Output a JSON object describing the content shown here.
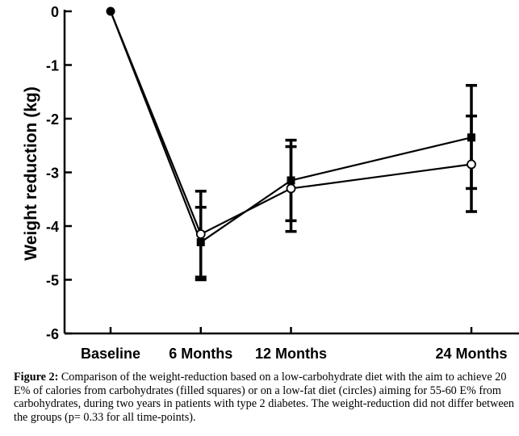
{
  "chart_data": {
    "type": "line",
    "title": "",
    "xlabel": "",
    "ylabel": "Weight reduction (kg)",
    "categories": [
      "Baseline",
      "6 Months",
      "12 Months",
      "24 Months"
    ],
    "x_months": [
      0,
      6,
      12,
      24
    ],
    "ylim": [
      -6,
      0
    ],
    "yticks": [
      0,
      -1,
      -2,
      -3,
      -4,
      -5,
      -6
    ],
    "grid": false,
    "legend": "none",
    "series": [
      {
        "name": "Low-carbohydrate diet (filled squares)",
        "marker": "filled-square",
        "values": [
          0,
          -4.3,
          -3.15,
          -2.35
        ],
        "error_upper": [
          0,
          -3.35,
          -2.4,
          -1.38
        ],
        "error_lower": [
          0,
          -5.0,
          -4.1,
          -3.73
        ]
      },
      {
        "name": "Low-fat diet (circles)",
        "marker": "open-circle",
        "values": [
          0,
          -4.15,
          -3.3,
          -2.85
        ],
        "error_upper": [
          0,
          -3.65,
          -2.52,
          -1.95
        ],
        "error_lower": [
          0,
          -4.95,
          -3.9,
          -3.3
        ]
      }
    ]
  },
  "caption": {
    "label": "Figure 2:",
    "text": " Comparison of the weight-reduction based on a low-carbohydrate diet with the aim to achieve 20 E% of calories from carbohydrates (filled squares) or on a low-fat diet (circles) aiming for 55-60 E% from carbohydrates, during two years in patients with type 2 diabetes. The weight-reduction did not differ between the groups (p= 0.33 for all time-points)."
  }
}
